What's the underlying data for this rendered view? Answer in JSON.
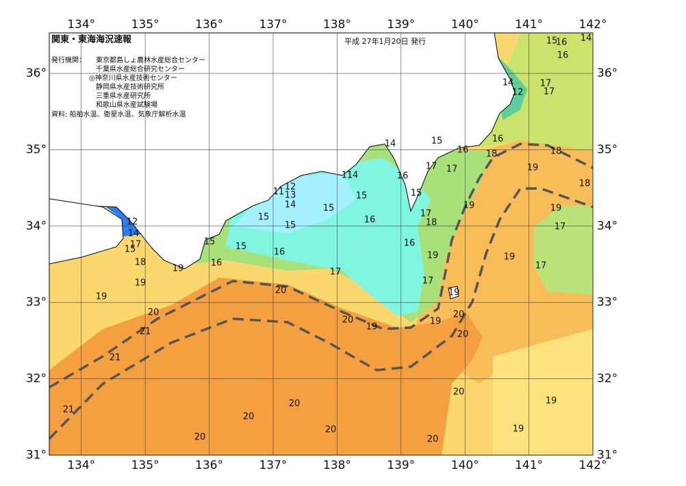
{
  "header": {
    "title": "関東・東海海況速報",
    "date": "平成 27年1月20日 発行",
    "issuer_label": "発行機関：",
    "agencies": [
      "東京都島しょ農林水産総合センター",
      "千葉県水産総合研究センター",
      "◎神奈川県水産技術センター",
      "静岡県水産技術研究所",
      "三重県水産研究所",
      "和歌山県水産試験場"
    ],
    "source": "資料: 船舶水温、衛星水温、気象庁解析水温"
  },
  "map": {
    "lon_ticks": [
      {
        "value": 134,
        "label": "134°"
      },
      {
        "value": 135,
        "label": "135°"
      },
      {
        "value": 136,
        "label": "136°"
      },
      {
        "value": 137,
        "label": "137°"
      },
      {
        "value": 138,
        "label": "138°"
      },
      {
        "value": 139,
        "label": "139°"
      },
      {
        "value": 140,
        "label": "140°"
      },
      {
        "value": 141,
        "label": "141°"
      },
      {
        "value": 142,
        "label": "142°"
      }
    ],
    "lat_ticks": [
      {
        "value": 31,
        "label": "31°"
      },
      {
        "value": 32,
        "label": "32°"
      },
      {
        "value": 33,
        "label": "33°"
      },
      {
        "value": 34,
        "label": "34°"
      },
      {
        "value": 35,
        "label": "35°"
      },
      {
        "value": 36,
        "label": "36°"
      }
    ],
    "lon_range": [
      133.5,
      142
    ],
    "lat_range": [
      31,
      36.53
    ],
    "contour_labels": [
      "14",
      "15",
      "16",
      "18",
      "16",
      "18",
      "15",
      "16",
      "14",
      "16",
      "14",
      "12",
      "17",
      "17",
      "17",
      "17",
      "19",
      "18",
      "16",
      "11",
      "14",
      "15",
      "15",
      "17",
      "18",
      "19",
      "19",
      "17",
      "12",
      "11",
      "13",
      "14",
      "15",
      "16",
      "15",
      "15",
      "16",
      "19",
      "19",
      "17",
      "15",
      "15",
      "16",
      "16",
      "17",
      "17",
      "19",
      "20",
      "20",
      "19",
      "19",
      "20",
      "20",
      "20",
      "21",
      "21",
      "20",
      "19",
      "21",
      "20",
      "20",
      "20",
      "20",
      "20",
      "19",
      "19",
      "19",
      "18",
      "19",
      "12",
      "14",
      "15",
      "17"
    ]
  }
}
